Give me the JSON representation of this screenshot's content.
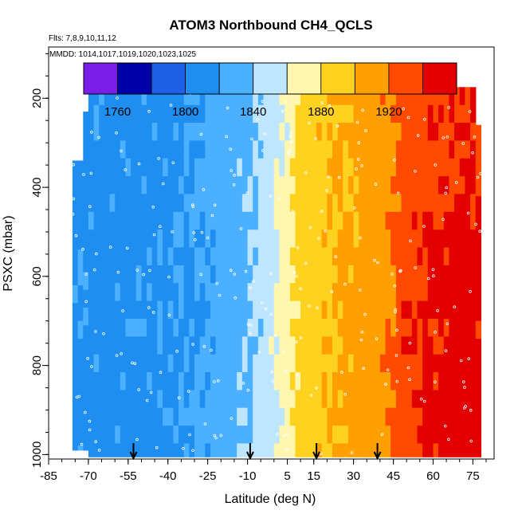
{
  "chart_data": {
    "type": "heatmap",
    "title": "ATOM3 Northbound CH4_QCLS",
    "subtitle_flights": "Flts: 7,8,9,10,11,12",
    "subtitle_dates": "MMDD: 1014,1017,1019,1020,1023,1025",
    "xlabel": "Latitude (deg N)",
    "ylabel": "PSXC (mbar)",
    "xlim": [
      -85,
      83
    ],
    "ylim": [
      1010,
      85
    ],
    "x_ticks": [
      -85,
      -70,
      -55,
      -40,
      -25,
      -10,
      5,
      15,
      30,
      45,
      60,
      75
    ],
    "x_tick_labels": [
      "-85",
      "-70",
      "-55",
      "-40",
      "-25",
      "-10",
      "5",
      "15",
      "30",
      "45",
      "60",
      "75"
    ],
    "y_ticks": [
      200,
      400,
      600,
      800,
      1000
    ],
    "y_tick_labels": [
      "200",
      "400",
      "600",
      "800",
      "1000"
    ],
    "colorbar": {
      "range": [
        1740,
        1960
      ],
      "ticks": [
        1760,
        1800,
        1840,
        1880,
        1920
      ],
      "tick_labels": [
        "1760",
        "1800",
        "1840",
        "1880",
        "1920"
      ],
      "boundaries": [
        1740,
        1760,
        1780,
        1800,
        1820,
        1840,
        1860,
        1880,
        1900,
        1920,
        1940,
        1960
      ],
      "colors": [
        "#7a1fe8",
        "#0000a8",
        "#1f5fe6",
        "#1e8ff0",
        "#4ab0ff",
        "#bfe6ff",
        "#fff7b0",
        "#ffd21f",
        "#ff9f00",
        "#ff4a00",
        "#e30000",
        "#8b1a1a"
      ]
    },
    "profile_ch4_ppb": [
      {
        "lat": -75,
        "value": 1815
      },
      {
        "lat": -60,
        "value": 1814
      },
      {
        "lat": -45,
        "value": 1815
      },
      {
        "lat": -30,
        "value": 1820
      },
      {
        "lat": -20,
        "value": 1828
      },
      {
        "lat": -10,
        "value": 1838
      },
      {
        "lat": -3,
        "value": 1850
      },
      {
        "lat": 3,
        "value": 1866
      },
      {
        "lat": 10,
        "value": 1888
      },
      {
        "lat": 20,
        "value": 1898
      },
      {
        "lat": 30,
        "value": 1905
      },
      {
        "lat": 40,
        "value": 1913
      },
      {
        "lat": 48,
        "value": 1925
      },
      {
        "lat": 58,
        "value": 1935
      },
      {
        "lat": 70,
        "value": 1940
      },
      {
        "lat": 78,
        "value": 1938
      }
    ],
    "arrow_latitudes": [
      -53,
      -9,
      16,
      39
    ],
    "dot_color": "#ffffff"
  }
}
